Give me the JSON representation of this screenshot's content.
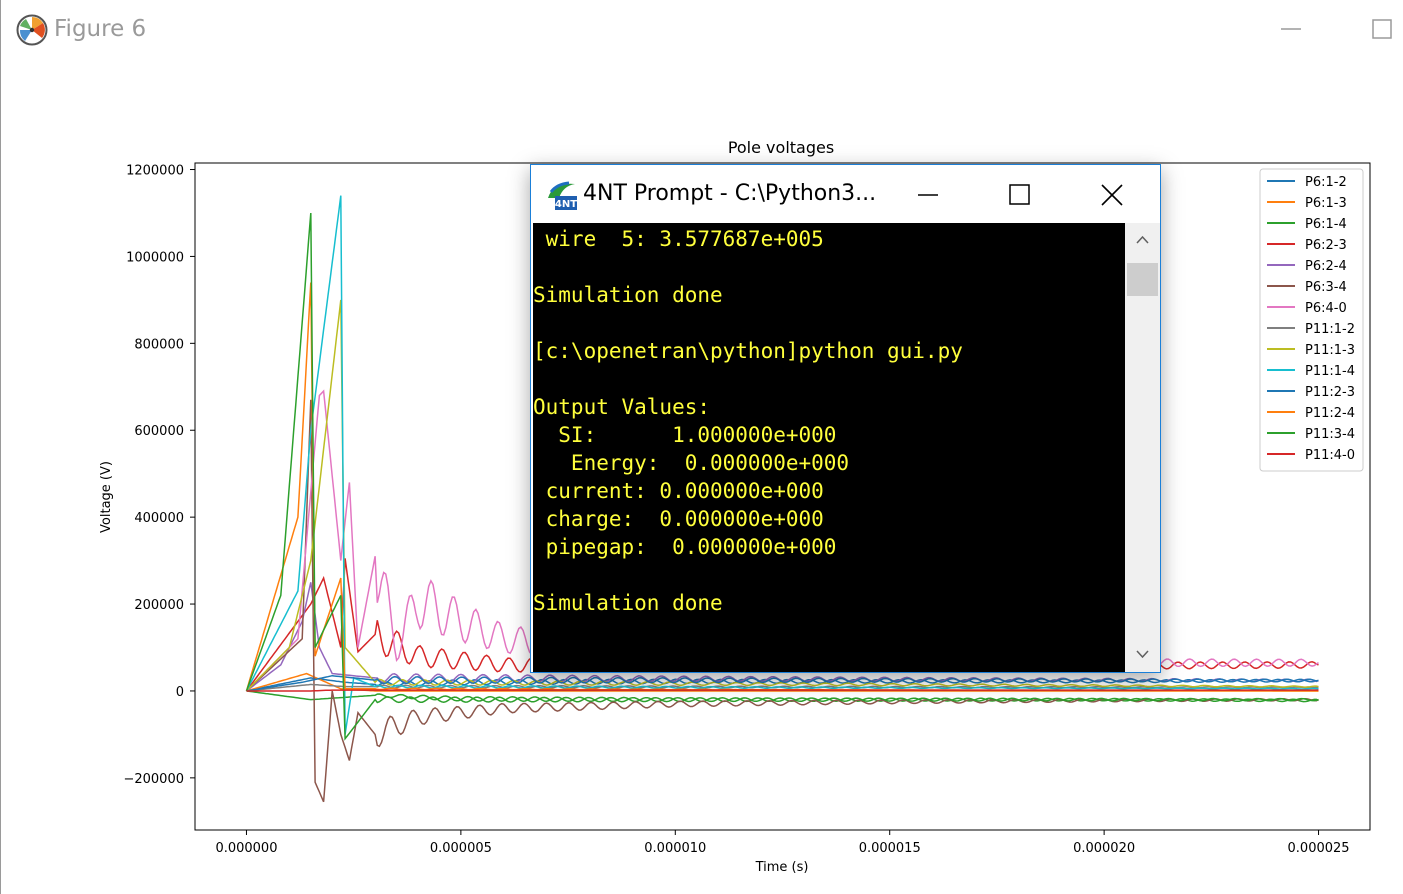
{
  "figure_window": {
    "title": "Figure 6",
    "app_icon": "matplotlib-icon",
    "minimize_icon": "minimize-icon",
    "maximize_icon": "maximize-icon"
  },
  "console_window": {
    "title": "4NT Prompt - C:\\Python3...",
    "app_icon": "4nt-icon",
    "minimize_icon": "minimize-icon",
    "maximize_icon": "maximize-icon",
    "close_icon": "close-icon",
    "text_color": "#ffff3c",
    "lines": [
      " wire  5: 3.577687e+005",
      "",
      "Simulation done",
      "",
      "[c:\\openetran\\python]python gui.py",
      "",
      "Output Values:",
      "  SI:      1.000000e+000",
      "   Energy:  0.000000e+000",
      " current: 0.000000e+000",
      " charge:  0.000000e+000",
      " pipegap:  0.000000e+000",
      "",
      "Simulation done"
    ],
    "scrollbar": {
      "up_icon": "scroll-up-icon",
      "down_icon": "scroll-down-icon"
    }
  },
  "chart_data": {
    "type": "line",
    "title": "Pole voltages",
    "xlabel": "Time (s)",
    "ylabel": "Voltage (V)",
    "xlim": [
      -1.2e-06,
      2.62e-05
    ],
    "ylim": [
      -320000,
      1215000
    ],
    "xticks": [
      0,
      5e-06,
      1e-05,
      1.5e-05,
      2e-05,
      2.5e-05
    ],
    "xtick_labels": [
      "0.000000",
      "0.000005",
      "0.000010",
      "0.000015",
      "0.000020",
      "0.000025"
    ],
    "yticks": [
      -200000,
      0,
      200000,
      400000,
      600000,
      800000,
      1000000,
      1200000
    ],
    "ytick_labels": [
      "−200000",
      "0",
      "200000",
      "400000",
      "600000",
      "800000",
      "1000000",
      "1200000"
    ],
    "grid": false,
    "legend_position": "top-right",
    "series": [
      {
        "name": "P6:1-2",
        "color": "#1f77b4",
        "points": [
          [
            0,
            0
          ],
          [
            1.5e-06,
            30000
          ],
          [
            2.3e-06,
            20000
          ],
          [
            3e-06,
            15000
          ],
          [
            5e-06,
            20000
          ],
          [
            1e-05,
            22000
          ],
          [
            1.5e-05,
            22000
          ],
          [
            2e-05,
            22000
          ],
          [
            2.5e-05,
            24000
          ]
        ]
      },
      {
        "name": "P6:1-3",
        "color": "#ff7f0e",
        "points": [
          [
            0,
            0
          ],
          [
            1.4e-06,
            40000
          ],
          [
            2.2e-06,
            5000
          ],
          [
            3e-06,
            0
          ],
          [
            2.5e-05,
            0
          ]
        ]
      },
      {
        "name": "P6:1-4",
        "color": "#2ca02c",
        "points": [
          [
            0,
            0
          ],
          [
            1.5e-06,
            -20000
          ],
          [
            3e-06,
            -10000
          ],
          [
            5e-06,
            -18000
          ],
          [
            1e-05,
            -20000
          ],
          [
            1.5e-05,
            -20000
          ],
          [
            2e-05,
            -20000
          ],
          [
            2.5e-05,
            -22000
          ]
        ]
      },
      {
        "name": "P6:2-3",
        "color": "#d62728",
        "points": [
          [
            0,
            0
          ],
          [
            1.5e-06,
            200000
          ],
          [
            1.8e-06,
            260000
          ],
          [
            2.2e-06,
            100000
          ],
          [
            2.3e-06,
            305000
          ],
          [
            2.6e-06,
            90000
          ],
          [
            3e-06,
            130000
          ],
          [
            4e-06,
            80000
          ],
          [
            6e-06,
            60000
          ],
          [
            1e-05,
            55000
          ],
          [
            1.5e-05,
            55000
          ],
          [
            2e-05,
            58000
          ],
          [
            2.5e-05,
            60000
          ]
        ]
      },
      {
        "name": "P6:2-4",
        "color": "#9467bd",
        "points": [
          [
            0,
            0
          ],
          [
            8e-07,
            60000
          ],
          [
            1.3e-06,
            160000
          ],
          [
            1.5e-06,
            250000
          ],
          [
            1.7e-06,
            100000
          ],
          [
            2e-06,
            40000
          ],
          [
            3e-06,
            30000
          ],
          [
            2.5e-05,
            24000
          ]
        ]
      },
      {
        "name": "P6:3-4",
        "color": "#8c564b",
        "points": [
          [
            0,
            0
          ],
          [
            1.3e-06,
            120000
          ],
          [
            1.5e-06,
            670000
          ],
          [
            1.6e-06,
            -210000
          ],
          [
            1.8e-06,
            -255000
          ],
          [
            2e-06,
            0
          ],
          [
            2.2e-06,
            -100000
          ],
          [
            2.4e-06,
            -160000
          ],
          [
            2.6e-06,
            -50000
          ],
          [
            3e-06,
            -100000
          ],
          [
            4e-06,
            -60000
          ],
          [
            6e-06,
            -40000
          ],
          [
            1e-05,
            -30000
          ],
          [
            1.5e-05,
            -25000
          ],
          [
            2e-05,
            -22000
          ],
          [
            2.5e-05,
            -20000
          ]
        ]
      },
      {
        "name": "P6:4-0",
        "color": "#e377c2",
        "points": [
          [
            0,
            0
          ],
          [
            8e-07,
            80000
          ],
          [
            1.2e-06,
            120000
          ],
          [
            1.6e-06,
            570000
          ],
          [
            1.7e-06,
            680000
          ],
          [
            1.8e-06,
            690000
          ],
          [
            2.2e-06,
            300000
          ],
          [
            2.4e-06,
            480000
          ],
          [
            2.6e-06,
            100000
          ],
          [
            3e-06,
            310000
          ],
          [
            3.5e-06,
            100000
          ],
          [
            4e-06,
            210000
          ],
          [
            5e-06,
            160000
          ],
          [
            6e-06,
            120000
          ],
          [
            1e-05,
            80000
          ],
          [
            1.5e-05,
            70000
          ],
          [
            2e-05,
            65000
          ],
          [
            2.5e-05,
            65000
          ]
        ]
      },
      {
        "name": "P11:1-2",
        "color": "#7f7f7f",
        "points": [
          [
            0,
            0
          ],
          [
            1.5e-06,
            15000
          ],
          [
            2.3e-06,
            10000
          ],
          [
            2.5e-05,
            8000
          ]
        ]
      },
      {
        "name": "P11:1-3",
        "color": "#bcbd22",
        "points": [
          [
            0,
            0
          ],
          [
            1e-06,
            100000
          ],
          [
            1.5e-06,
            300000
          ],
          [
            2.2e-06,
            900000
          ],
          [
            2.3e-06,
            100000
          ],
          [
            3e-06,
            20000
          ],
          [
            2.5e-05,
            10000
          ]
        ]
      },
      {
        "name": "P11:1-4",
        "color": "#17becf",
        "points": [
          [
            0,
            0
          ],
          [
            1.2e-06,
            230000
          ],
          [
            1.5e-06,
            600000
          ],
          [
            2.2e-06,
            1140000
          ],
          [
            2.3e-06,
            -100000
          ],
          [
            2.5e-06,
            30000
          ],
          [
            3e-06,
            10000
          ],
          [
            2.5e-05,
            5000
          ]
        ]
      },
      {
        "name": "P11:2-3",
        "color": "#1f77b4",
        "points": [
          [
            0,
            0
          ],
          [
            1.3e-06,
            20000
          ],
          [
            2e-06,
            35000
          ],
          [
            3e-06,
            25000
          ],
          [
            2.5e-05,
            24000
          ]
        ]
      },
      {
        "name": "P11:2-4",
        "color": "#ff7f0e",
        "points": [
          [
            0,
            0
          ],
          [
            1.2e-06,
            400000
          ],
          [
            1.5e-06,
            940000
          ],
          [
            1.6e-06,
            80000
          ],
          [
            2.2e-06,
            260000
          ],
          [
            2.3e-06,
            5000
          ],
          [
            2.5e-05,
            0
          ]
        ]
      },
      {
        "name": "P11:3-4",
        "color": "#2ca02c",
        "points": [
          [
            0,
            0
          ],
          [
            8e-07,
            220000
          ],
          [
            1.5e-06,
            1100000
          ],
          [
            1.6e-06,
            100000
          ],
          [
            2.2e-06,
            220000
          ],
          [
            2.3e-06,
            -110000
          ],
          [
            3e-06,
            -20000
          ],
          [
            2.5e-05,
            -20000
          ]
        ]
      },
      {
        "name": "P11:4-0",
        "color": "#d62728",
        "points": [
          [
            0,
            0
          ],
          [
            1.5e-06,
            0
          ],
          [
            2e-06,
            2000
          ],
          [
            2.5e-05,
            2000
          ]
        ]
      }
    ]
  }
}
